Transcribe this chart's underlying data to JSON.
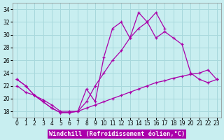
{
  "xlabel": "Windchill (Refroidissement éolien,°C)",
  "bg_color": "#c8eef0",
  "grid_color": "#a8d8dc",
  "line_color": "#aa00aa",
  "ylim": [
    17,
    35
  ],
  "xlim": [
    -0.5,
    23.5
  ],
  "yticks": [
    18,
    20,
    22,
    24,
    26,
    28,
    30,
    32,
    34
  ],
  "xticks": [
    0,
    1,
    2,
    3,
    4,
    5,
    6,
    7,
    8,
    9,
    10,
    11,
    12,
    13,
    14,
    15,
    16,
    17,
    18,
    19,
    20,
    21,
    22,
    23
  ],
  "tick_fontsize": 5.5,
  "label_fontsize": 6.2,
  "line1_x": [
    0,
    1,
    2,
    3,
    4,
    5,
    6,
    7,
    8,
    9,
    10,
    11,
    12,
    13,
    14,
    15,
    16,
    17
  ],
  "line1_y": [
    23.0,
    22.0,
    20.5,
    19.5,
    18.5,
    17.8,
    17.8,
    18.0,
    21.5,
    19.5,
    26.5,
    31.0,
    32.0,
    29.5,
    33.5,
    32.0,
    33.5,
    31.0
  ],
  "line2_x": [
    0,
    1,
    2,
    3,
    4,
    5,
    6,
    7,
    8,
    9,
    10,
    11,
    12,
    13,
    14,
    15,
    16,
    17,
    18,
    19,
    20,
    21,
    22,
    23
  ],
  "line2_y": [
    23.0,
    22.0,
    20.5,
    19.5,
    18.5,
    17.8,
    17.8,
    18.0,
    19.5,
    22.0,
    24.0,
    26.0,
    27.5,
    29.5,
    31.0,
    32.0,
    29.5,
    30.5,
    29.5,
    28.5,
    24.0,
    23.0,
    22.5,
    23.0
  ],
  "line3_x": [
    0,
    1,
    2,
    3,
    4,
    5,
    6,
    7,
    8,
    9,
    10,
    11,
    12,
    13,
    14,
    15,
    16,
    17,
    18,
    19,
    20,
    21,
    22,
    23
  ],
  "line3_y": [
    22.0,
    21.0,
    20.5,
    19.8,
    19.0,
    18.0,
    18.0,
    18.0,
    18.5,
    19.0,
    19.5,
    20.0,
    20.5,
    21.0,
    21.5,
    22.0,
    22.5,
    22.8,
    23.2,
    23.5,
    23.8,
    24.0,
    24.5,
    23.0
  ]
}
